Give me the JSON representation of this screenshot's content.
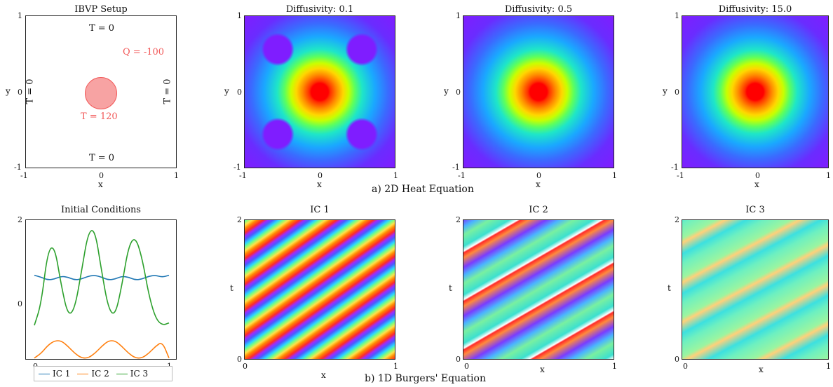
{
  "colors": {
    "ic1": "#1f77b4",
    "ic2": "#ff7f0e",
    "ic3": "#2ca02c",
    "source": "#f25a5a",
    "source_fill": "#f7a3a3",
    "heat_low": "#7f1dff",
    "heat_high": "#ff0000"
  },
  "captions": {
    "heat": "a) 2D Heat Equation",
    "burgers": "b) 1D Burgers' Equation"
  },
  "ibvp": {
    "title": "IBVP Setup",
    "top_bc": "T = 0",
    "bottom_bc": "T = 0",
    "left_bc": "T = 0",
    "right_bc": "T = 0",
    "source_temp": "T = 120",
    "source_flux": "Q = -100",
    "xlabel": "x",
    "ylabel": "y",
    "xticks": [
      "-1",
      "0",
      "1"
    ],
    "yticks": [
      "1",
      "0",
      "-1"
    ]
  },
  "heat_panels": [
    {
      "title_prefix": "Diffusivity:",
      "title_value": "0.1",
      "xlabel": "x",
      "ylabel": "y",
      "xticks": [
        "-1",
        "0",
        "1"
      ],
      "yticks": [
        "1",
        "0",
        "-1"
      ]
    },
    {
      "title_prefix": "Diffusivity:",
      "title_value": "0.5",
      "xlabel": "x",
      "ylabel": "y",
      "xticks": [
        "-1",
        "0",
        "1"
      ],
      "yticks": [
        "1",
        "0",
        "-1"
      ]
    },
    {
      "title_prefix": "Diffusivity:",
      "title_value": "15.0",
      "xlabel": "x",
      "ylabel": "y",
      "xticks": [
        "-1",
        "0",
        "1"
      ],
      "yticks": [
        "1",
        "0",
        "-1"
      ]
    }
  ],
  "burgers_panels": [
    {
      "title": "IC 1",
      "xlabel": "x",
      "ylabel": "t",
      "xticks": [
        "0",
        "1"
      ],
      "yticks": [
        "2",
        "0"
      ]
    },
    {
      "title": "IC 2",
      "xlabel": "x",
      "ylabel": "t",
      "xticks": [
        "0",
        "1"
      ],
      "yticks": [
        "2",
        "0"
      ]
    },
    {
      "title": "IC 3",
      "xlabel": "x",
      "ylabel": "t",
      "xticks": [
        "0",
        "1"
      ],
      "yticks": [
        "2",
        "0"
      ]
    }
  ],
  "chart_data": [
    {
      "type": "line",
      "title": "Initial Conditions",
      "xlabel": "",
      "ylabel": "",
      "xlim": [
        0,
        1
      ],
      "ylim": [
        -1,
        2
      ],
      "xticks": [
        "0",
        "1"
      ],
      "yticks": [
        "2",
        "0"
      ],
      "legend": "bottom",
      "x": [
        0,
        0.05,
        0.1,
        0.15,
        0.2,
        0.25,
        0.3,
        0.35,
        0.4,
        0.45,
        0.5,
        0.55,
        0.6,
        0.65,
        0.7,
        0.75,
        0.8,
        0.85,
        0.9,
        0.95,
        1.0
      ],
      "series": [
        {
          "name": "IC 1",
          "values": [
            0.82,
            0.78,
            0.72,
            0.74,
            0.8,
            0.78,
            0.72,
            0.74,
            0.8,
            0.82,
            0.78,
            0.72,
            0.74,
            0.8,
            0.78,
            0.72,
            0.74,
            0.8,
            0.82,
            0.78,
            0.82
          ]
        },
        {
          "name": "IC 2",
          "values": [
            -0.95,
            -0.85,
            -0.68,
            -0.58,
            -0.58,
            -0.7,
            -0.85,
            -0.95,
            -0.95,
            -0.85,
            -0.7,
            -0.58,
            -0.58,
            -0.7,
            -0.85,
            -0.95,
            -0.95,
            -0.85,
            -0.7,
            -0.6,
            -0.95
          ]
        },
        {
          "name": "IC 3",
          "values": [
            -0.25,
            0.2,
            1.35,
            1.45,
            0.6,
            -0.05,
            0.1,
            0.9,
            1.75,
            1.8,
            0.9,
            0.1,
            -0.05,
            0.6,
            1.45,
            1.65,
            1.2,
            0.4,
            -0.1,
            -0.25,
            -0.2
          ]
        }
      ]
    }
  ]
}
